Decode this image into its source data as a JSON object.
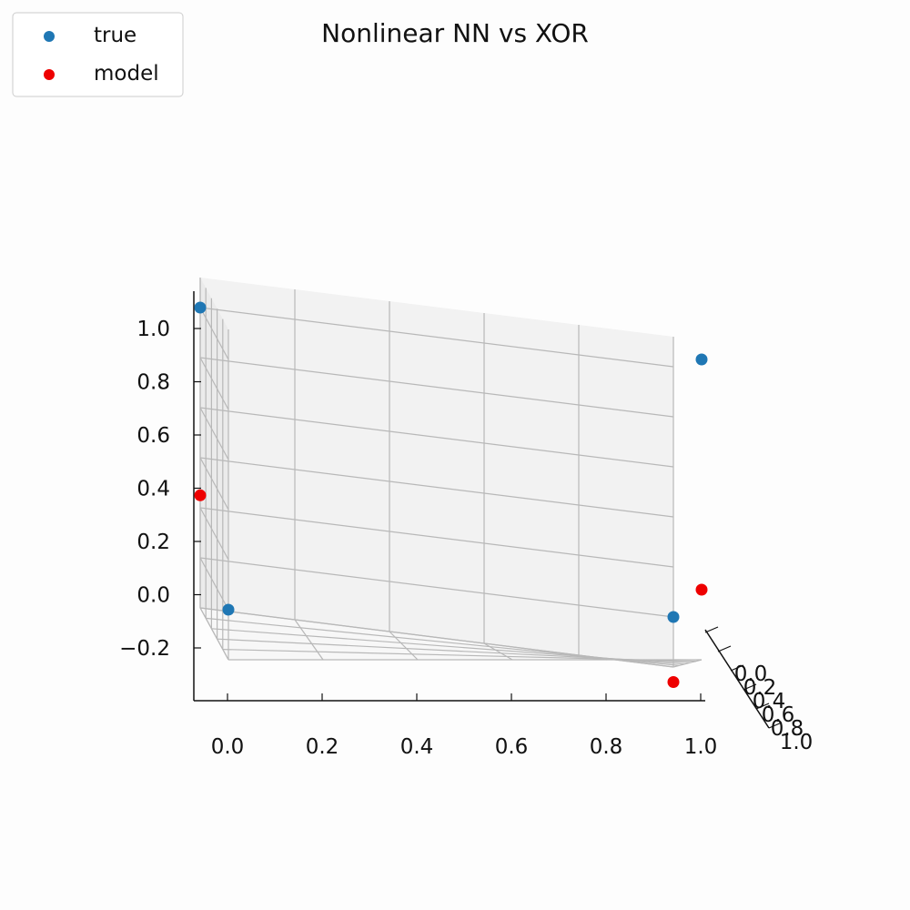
{
  "chart_data": {
    "type": "scatter",
    "projection": "3d",
    "title": "Nonlinear NN vs XOR",
    "xlabel": "",
    "ylabel": "",
    "zlabel": "",
    "x_ticks": [
      "0.0",
      "0.2",
      "0.4",
      "0.6",
      "0.8",
      "1.0"
    ],
    "y_ticks": [
      "0.0",
      "0.2",
      "0.4",
      "0.6",
      "0.8",
      "1.0"
    ],
    "z_ticks": [
      "−0.2",
      "0.0",
      "0.2",
      "0.4",
      "0.6",
      "0.8",
      "1.0"
    ],
    "xlim": [
      0,
      1
    ],
    "ylim": [
      0,
      1
    ],
    "zlim": [
      -0.2,
      1.0
    ],
    "grid": true,
    "legend_position": "top-left",
    "series": [
      {
        "name": "true",
        "color": "#1f77b4",
        "points": [
          {
            "x": 0,
            "y": 0,
            "z": 0
          },
          {
            "x": 0,
            "y": 1,
            "z": 1
          },
          {
            "x": 1,
            "y": 0,
            "z": 1
          },
          {
            "x": 1,
            "y": 1,
            "z": 0
          }
        ]
      },
      {
        "name": "model",
        "color": "#ee0000",
        "points": [
          {
            "x": 0,
            "y": 1,
            "z": 0.25
          },
          {
            "x": 1,
            "y": 0,
            "z": 0.08
          },
          {
            "x": 1,
            "y": 1,
            "z": -0.26
          }
        ]
      }
    ]
  }
}
